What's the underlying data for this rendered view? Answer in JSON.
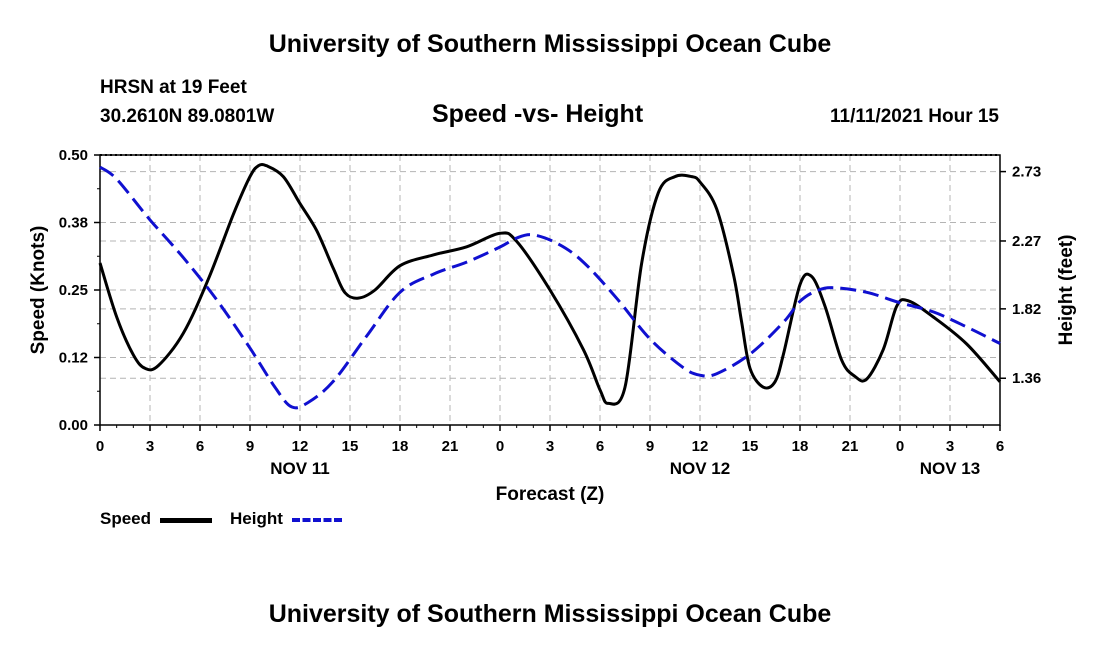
{
  "header": {
    "title": "University of Southern Mississippi Ocean Cube",
    "station": "HRSN at 19 Feet",
    "coordinates": "30.2610N  89.0801W",
    "subtitle": "Speed -vs- Height",
    "datetime": "11/11/2021 Hour 15"
  },
  "footer": {
    "title": "University of Southern Mississippi Ocean Cube"
  },
  "legend": {
    "speed_label": "Speed",
    "height_label": "Height"
  },
  "colors": {
    "speed": "#000000",
    "height": "#1010d0",
    "grid": "#b4b4b4"
  },
  "chart_data": {
    "type": "line",
    "title": "Speed -vs- Height",
    "xlabel": "Forecast (Z)",
    "ylabel": "Speed (Knots)",
    "y2label": "Height (feet)",
    "x_range_hours": [
      0,
      54
    ],
    "x_ticks": [
      {
        "hour": 0,
        "label": "0"
      },
      {
        "hour": 3,
        "label": "3"
      },
      {
        "hour": 6,
        "label": "6"
      },
      {
        "hour": 9,
        "label": "9"
      },
      {
        "hour": 12,
        "label": "12"
      },
      {
        "hour": 15,
        "label": "15"
      },
      {
        "hour": 18,
        "label": "18"
      },
      {
        "hour": 21,
        "label": "21"
      },
      {
        "hour": 24,
        "label": "0"
      },
      {
        "hour": 27,
        "label": "3"
      },
      {
        "hour": 30,
        "label": "6"
      },
      {
        "hour": 33,
        "label": "9"
      },
      {
        "hour": 36,
        "label": "12"
      },
      {
        "hour": 39,
        "label": "15"
      },
      {
        "hour": 42,
        "label": "18"
      },
      {
        "hour": 45,
        "label": "21"
      },
      {
        "hour": 48,
        "label": "0"
      },
      {
        "hour": 51,
        "label": "3"
      },
      {
        "hour": 54,
        "label": "6"
      }
    ],
    "date_labels": [
      {
        "hour": 12,
        "label": "NOV 11"
      },
      {
        "hour": 36,
        "label": "NOV 12"
      },
      {
        "hour": 51,
        "label": "NOV 13"
      }
    ],
    "ylim": [
      0,
      0.5
    ],
    "y_ticks": [
      "0.00",
      "0.12",
      "0.25",
      "0.38",
      "0.50"
    ],
    "y2lim": [
      1.05,
      2.84
    ],
    "y2_ticks": [
      "1.36",
      "1.82",
      "2.27",
      "2.73"
    ],
    "series": [
      {
        "name": "Speed",
        "axis": "left",
        "x": [
          0,
          1,
          2,
          2.7,
          3.5,
          5,
          6.5,
          8,
          9,
          9.5,
          10,
          11,
          12,
          13,
          14,
          14.7,
          15.5,
          16.5,
          18,
          20,
          22,
          24,
          25,
          27,
          29,
          30,
          30.5,
          31.5,
          32.5,
          33.5,
          34.5,
          35.5,
          36,
          37,
          38,
          38.5,
          39,
          39.8,
          40.5,
          41,
          42,
          42.7,
          43.5,
          44.5,
          45.3,
          46,
          47,
          47.8,
          48.5,
          50,
          52,
          54
        ],
        "values": [
          0.3,
          0.2,
          0.13,
          0.105,
          0.11,
          0.17,
          0.27,
          0.39,
          0.46,
          0.48,
          0.48,
          0.46,
          0.41,
          0.36,
          0.29,
          0.245,
          0.235,
          0.25,
          0.295,
          0.315,
          0.33,
          0.355,
          0.34,
          0.25,
          0.14,
          0.065,
          0.04,
          0.07,
          0.3,
          0.43,
          0.46,
          0.46,
          0.45,
          0.4,
          0.28,
          0.19,
          0.105,
          0.07,
          0.08,
          0.13,
          0.26,
          0.275,
          0.22,
          0.12,
          0.09,
          0.085,
          0.14,
          0.22,
          0.23,
          0.2,
          0.15,
          0.08
        ]
      },
      {
        "name": "Height",
        "axis": "right",
        "x": [
          0,
          1,
          3,
          5,
          7,
          9,
          10.5,
          11.5,
          12.5,
          14,
          16,
          18,
          20,
          22,
          24,
          25,
          26,
          27.5,
          29,
          31,
          33,
          35,
          36,
          37,
          39,
          41,
          42,
          43,
          44,
          46,
          48,
          50,
          52,
          54
        ],
        "values": [
          2.76,
          2.68,
          2.41,
          2.16,
          1.88,
          1.56,
          1.3,
          1.17,
          1.2,
          1.34,
          1.64,
          1.93,
          2.05,
          2.13,
          2.23,
          2.29,
          2.31,
          2.25,
          2.13,
          1.89,
          1.62,
          1.43,
          1.38,
          1.39,
          1.52,
          1.73,
          1.87,
          1.94,
          1.96,
          1.93,
          1.86,
          1.8,
          1.7,
          1.59
        ]
      }
    ]
  }
}
